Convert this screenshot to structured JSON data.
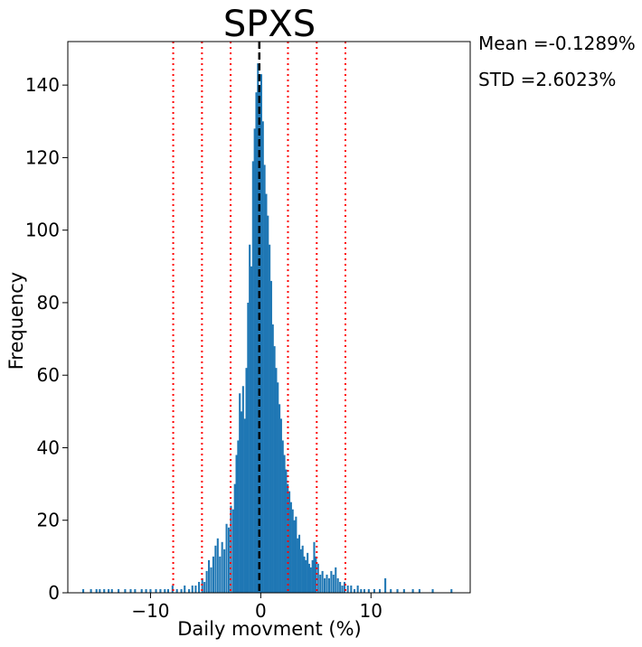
{
  "chart_data": {
    "type": "bar",
    "title": "SPXS",
    "xlabel": "Daily movment (%)",
    "ylabel": "Frequency",
    "xlim": [
      -17.5,
      19.0
    ],
    "ylim": [
      0,
      152
    ],
    "xticks": [
      -10,
      0,
      10
    ],
    "xtick_labels": [
      "−10",
      "0",
      "10"
    ],
    "yticks": [
      0,
      20,
      40,
      60,
      80,
      100,
      120,
      140
    ],
    "bin_width": 0.17,
    "grid": false,
    "legend": "none",
    "colors": {
      "bars": "#1f77b4",
      "mean_line": "#000000",
      "std_lines": "#ff0000"
    },
    "mean_line_x": -0.1289,
    "std_lines_x": [
      -7.94,
      -5.33,
      -2.73,
      2.47,
      5.08,
      7.68
    ],
    "bins": [
      [
        -16.1,
        1
      ],
      [
        -15.4,
        1
      ],
      [
        -14.9,
        1
      ],
      [
        -14.6,
        1
      ],
      [
        -14.2,
        1
      ],
      [
        -13.8,
        1
      ],
      [
        -13.5,
        1
      ],
      [
        -12.9,
        1
      ],
      [
        -12.3,
        1
      ],
      [
        -11.8,
        1
      ],
      [
        -11.4,
        1
      ],
      [
        -10.8,
        1
      ],
      [
        -10.4,
        1
      ],
      [
        -10.0,
        1
      ],
      [
        -9.5,
        1
      ],
      [
        -9.1,
        1
      ],
      [
        -8.7,
        1
      ],
      [
        -8.4,
        1
      ],
      [
        -8.0,
        2
      ],
      [
        -7.6,
        1
      ],
      [
        -7.2,
        1
      ],
      [
        -6.9,
        2
      ],
      [
        -6.5,
        1
      ],
      [
        -6.2,
        2
      ],
      [
        -5.9,
        2
      ],
      [
        -5.6,
        3
      ],
      [
        -5.3,
        4
      ],
      [
        -5.1,
        3
      ],
      [
        -4.9,
        6
      ],
      [
        -4.7,
        9
      ],
      [
        -4.5,
        7
      ],
      [
        -4.3,
        10
      ],
      [
        -4.1,
        13
      ],
      [
        -3.9,
        15
      ],
      [
        -3.7,
        10
      ],
      [
        -3.5,
        14
      ],
      [
        -3.3,
        12
      ],
      [
        -3.1,
        19
      ],
      [
        -2.9,
        18
      ],
      [
        -2.7,
        24
      ],
      [
        -2.5,
        23
      ],
      [
        -2.35,
        30
      ],
      [
        -2.2,
        38
      ],
      [
        -2.05,
        42
      ],
      [
        -1.9,
        55
      ],
      [
        -1.75,
        50
      ],
      [
        -1.6,
        57
      ],
      [
        -1.45,
        48
      ],
      [
        -1.3,
        62
      ],
      [
        -1.15,
        80
      ],
      [
        -1.0,
        96
      ],
      [
        -0.85,
        90
      ],
      [
        -0.7,
        119
      ],
      [
        -0.55,
        128
      ],
      [
        -0.4,
        138
      ],
      [
        -0.25,
        146
      ],
      [
        -0.1,
        140
      ],
      [
        0.05,
        143
      ],
      [
        0.2,
        130
      ],
      [
        0.35,
        118
      ],
      [
        0.5,
        110
      ],
      [
        0.65,
        104
      ],
      [
        0.8,
        96
      ],
      [
        0.95,
        86
      ],
      [
        1.1,
        74
      ],
      [
        1.25,
        68
      ],
      [
        1.4,
        62
      ],
      [
        1.55,
        58
      ],
      [
        1.7,
        52
      ],
      [
        1.85,
        48
      ],
      [
        2.0,
        42
      ],
      [
        2.15,
        38
      ],
      [
        2.3,
        34
      ],
      [
        2.45,
        30
      ],
      [
        2.6,
        28
      ],
      [
        2.75,
        25
      ],
      [
        2.9,
        23
      ],
      [
        3.05,
        20
      ],
      [
        3.2,
        21
      ],
      [
        3.35,
        15
      ],
      [
        3.5,
        16
      ],
      [
        3.65,
        12
      ],
      [
        3.8,
        13
      ],
      [
        3.95,
        10
      ],
      [
        4.1,
        9
      ],
      [
        4.25,
        11
      ],
      [
        4.4,
        8
      ],
      [
        4.55,
        7
      ],
      [
        4.7,
        9
      ],
      [
        4.85,
        14
      ],
      [
        5.0,
        10
      ],
      [
        5.2,
        8
      ],
      [
        5.4,
        5
      ],
      [
        5.6,
        6
      ],
      [
        5.8,
        4
      ],
      [
        6.0,
        5
      ],
      [
        6.2,
        4
      ],
      [
        6.4,
        6
      ],
      [
        6.6,
        5
      ],
      [
        6.8,
        7
      ],
      [
        7.0,
        4
      ],
      [
        7.2,
        3
      ],
      [
        7.4,
        2
      ],
      [
        7.6,
        3
      ],
      [
        7.9,
        2
      ],
      [
        8.2,
        2
      ],
      [
        8.5,
        1
      ],
      [
        8.8,
        2
      ],
      [
        9.1,
        1
      ],
      [
        9.4,
        1
      ],
      [
        9.8,
        1
      ],
      [
        10.3,
        1
      ],
      [
        10.8,
        1
      ],
      [
        11.3,
        4
      ],
      [
        11.8,
        1
      ],
      [
        12.4,
        1
      ],
      [
        13.0,
        1
      ],
      [
        13.8,
        1
      ],
      [
        14.4,
        1
      ],
      [
        15.6,
        1
      ],
      [
        17.3,
        1
      ]
    ]
  },
  "annotations": {
    "mean": "Mean =-0.1289%",
    "std": "STD =2.6023%"
  }
}
